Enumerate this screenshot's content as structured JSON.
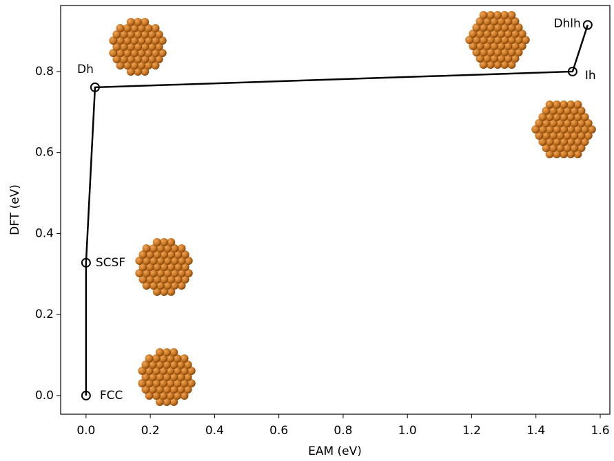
{
  "chart_data": {
    "type": "line",
    "x_label": "EAM (eV)",
    "y_label": "DFT (eV)",
    "point_labels": [
      "FCC",
      "SCSF",
      "Dh",
      "Ih",
      "Dhlh"
    ],
    "x": [
      0,
      0,
      0.028,
      1.514,
      1.561
    ],
    "series": [
      {
        "color": "#000000",
        "values": [
          0,
          0.328,
          0.761,
          0.8,
          0.915
        ]
      }
    ],
    "xlim": [
      -0.079,
      1.63
    ],
    "ylim": [
      -0.046,
      0.963
    ],
    "xticks": [
      {
        "value": 0,
        "label": "0.0"
      },
      0.2,
      0.4,
      0.6,
      0.8,
      {
        "value": 1,
        "label": "1.0"
      },
      1.2,
      1.4,
      1.6
    ],
    "yticks": [
      {
        "value": 0,
        "label": "0.0"
      },
      0.2,
      0.4,
      0.6,
      0.8
    ],
    "grid": false
  }
}
